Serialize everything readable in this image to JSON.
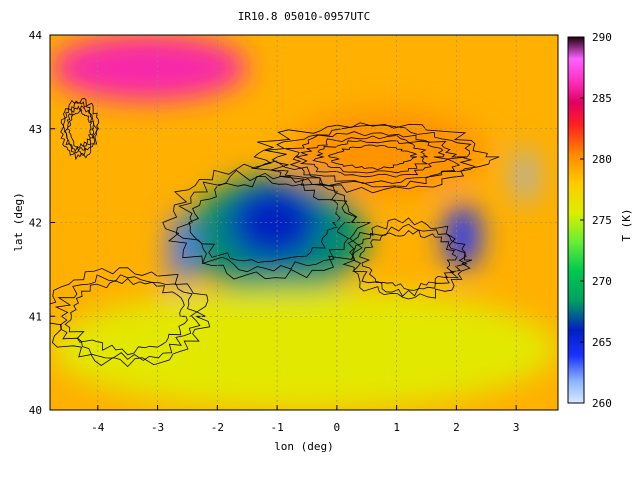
{
  "chart_data": {
    "type": "heatmap",
    "title": "IR10.8 05010-0957UTC",
    "xlabel": "lon (deg)",
    "ylabel": "lat (deg)",
    "colorbar_label": "T (K)",
    "xlim": [
      -4.8,
      3.7
    ],
    "ylim": [
      40,
      44
    ],
    "xticks": [
      -4,
      -3,
      -2,
      -1,
      0,
      1,
      2,
      3
    ],
    "yticks": [
      40,
      41,
      42,
      43,
      44
    ],
    "colorbar_range": [
      260,
      290
    ],
    "colorbar_ticks": [
      260,
      265,
      270,
      275,
      280,
      285,
      290
    ],
    "grid": true,
    "contours": true,
    "field_regions": [
      {
        "name": "warm-northwest-pink",
        "lon": [
          -4.8,
          -1.5
        ],
        "lat": [
          43.3,
          44.0
        ],
        "value": 286
      },
      {
        "name": "pyrenees-red",
        "lon": [
          -0.8,
          2.5
        ],
        "lat": [
          42.3,
          43.2
        ],
        "value": 280
      },
      {
        "name": "ebro-valley-green",
        "lon": [
          -2.5,
          0.5
        ],
        "lat": [
          41.2,
          42.5
        ],
        "value": 268
      },
      {
        "name": "central-green-core",
        "lon": [
          -1.8,
          -0.3
        ],
        "lat": [
          41.6,
          42.4
        ],
        "value": 266
      },
      {
        "name": "south-yellow-orange",
        "lon": [
          -4.8,
          3.7
        ],
        "lat": [
          40.0,
          41.3
        ],
        "value": 276
      },
      {
        "name": "cold-cloud-west",
        "lon": [
          -2.8,
          -2.4
        ],
        "lat": [
          41.3,
          42.1
        ],
        "value": 263
      },
      {
        "name": "cold-cloud-east",
        "lon": [
          1.8,
          2.4
        ],
        "lat": [
          41.5,
          42.2
        ],
        "value": 264
      },
      {
        "name": "cold-cloud-far-east",
        "lon": [
          3.0,
          3.3
        ],
        "lat": [
          42.2,
          42.8
        ],
        "value": 262
      }
    ]
  }
}
